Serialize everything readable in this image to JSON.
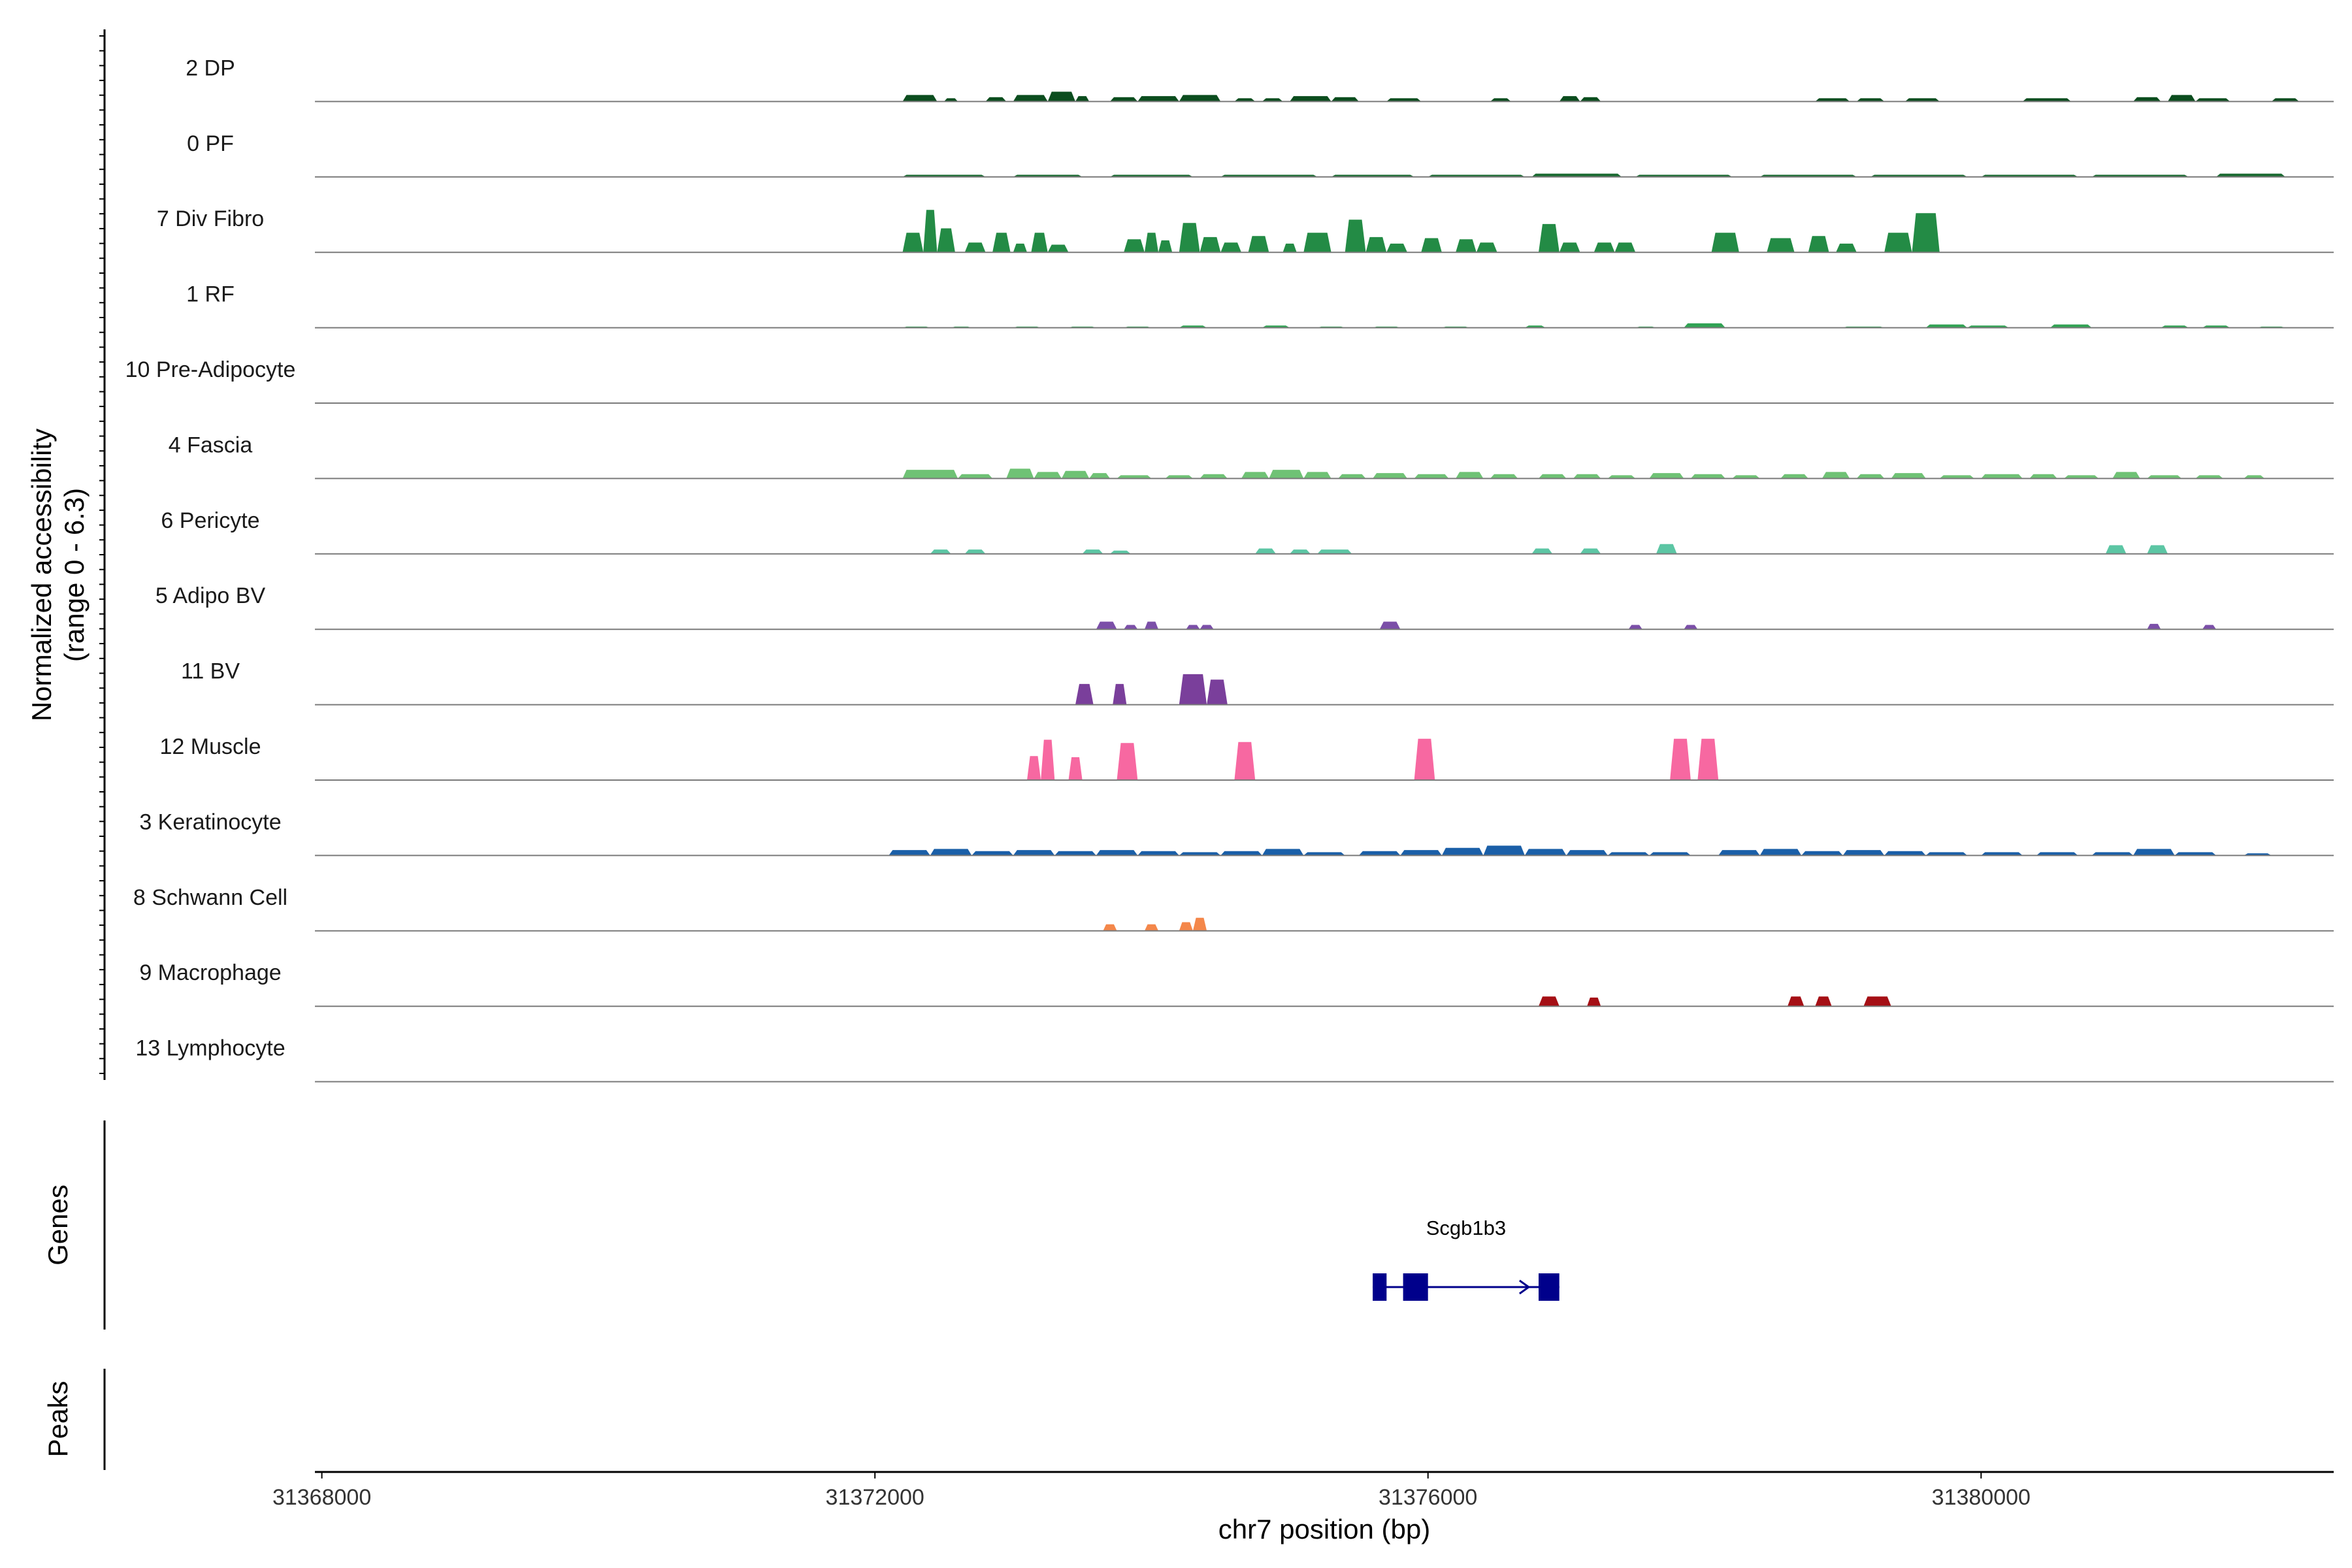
{
  "chart_data": {
    "type": "area",
    "title": "",
    "chromosome": "chr7",
    "xlabel": "chr7 position (bp)",
    "ylabel_line1": "Normalized accessibility",
    "ylabel_line2": "(range 0 - 6.3)",
    "xlim": [
      31367950,
      31382550
    ],
    "xticks": [
      31368000,
      31372000,
      31376000,
      31380000
    ],
    "xtick_labels": [
      "31368000",
      "31372000",
      "31376000",
      "31380000"
    ],
    "ylim": [
      0,
      6.3
    ],
    "genes_track_label": "Genes",
    "peaks_track_label": "Peaks",
    "tracks": [
      {
        "name": "2 DP",
        "color": "#0b4d1e",
        "peaks": [
          [
            31372200,
            31372450,
            0.6
          ],
          [
            31372500,
            31372600,
            0.3
          ],
          [
            31372800,
            31372950,
            0.4
          ],
          [
            31373000,
            31373250,
            0.6
          ],
          [
            31373250,
            31373450,
            0.9
          ],
          [
            31373450,
            31373550,
            0.5
          ],
          [
            31373700,
            31373900,
            0.4
          ],
          [
            31373900,
            31374200,
            0.5
          ],
          [
            31374200,
            31374500,
            0.6
          ],
          [
            31374600,
            31374750,
            0.3
          ],
          [
            31374800,
            31374950,
            0.3
          ],
          [
            31375000,
            31375300,
            0.5
          ],
          [
            31375300,
            31375500,
            0.4
          ],
          [
            31375700,
            31375950,
            0.3
          ],
          [
            31376450,
            31376600,
            0.3
          ],
          [
            31376950,
            31377100,
            0.5
          ],
          [
            31377100,
            31377250,
            0.4
          ],
          [
            31378800,
            31379050,
            0.3
          ],
          [
            31379100,
            31379300,
            0.3
          ],
          [
            31379450,
            31379700,
            0.3
          ],
          [
            31380300,
            31380650,
            0.3
          ],
          [
            31381100,
            31381300,
            0.4
          ],
          [
            31381350,
            31381550,
            0.6
          ],
          [
            31381550,
            31381800,
            0.3
          ],
          [
            31382100,
            31382300,
            0.3
          ]
        ]
      },
      {
        "name": "0 PF",
        "color": "#1b6b32",
        "peaks": [
          [
            31372200,
            31372800,
            0.2
          ],
          [
            31373000,
            31373500,
            0.2
          ],
          [
            31373700,
            31374300,
            0.2
          ],
          [
            31374500,
            31375200,
            0.2
          ],
          [
            31375300,
            31375900,
            0.2
          ],
          [
            31376000,
            31376700,
            0.2
          ],
          [
            31376750,
            31377400,
            0.3
          ],
          [
            31377500,
            31378200,
            0.2
          ],
          [
            31378400,
            31379100,
            0.2
          ],
          [
            31379200,
            31379900,
            0.2
          ],
          [
            31380000,
            31380700,
            0.2
          ],
          [
            31380800,
            31381500,
            0.2
          ],
          [
            31381700,
            31382200,
            0.3
          ]
        ]
      },
      {
        "name": "7 Div Fibro",
        "color": "#238b45",
        "peaks": [
          [
            31372200,
            31372350,
            1.8
          ],
          [
            31372350,
            31372450,
            3.9
          ],
          [
            31372450,
            31372580,
            2.2
          ],
          [
            31372650,
            31372800,
            0.9
          ],
          [
            31372850,
            31372980,
            1.8
          ],
          [
            31373000,
            31373100,
            0.8
          ],
          [
            31373130,
            31373250,
            1.8
          ],
          [
            31373250,
            31373400,
            0.7
          ],
          [
            31373800,
            31373950,
            1.2
          ],
          [
            31373950,
            31374050,
            1.8
          ],
          [
            31374050,
            31374150,
            1.1
          ],
          [
            31374200,
            31374350,
            2.7
          ],
          [
            31374350,
            31374500,
            1.4
          ],
          [
            31374500,
            31374650,
            0.9
          ],
          [
            31374700,
            31374850,
            1.5
          ],
          [
            31374950,
            31375050,
            0.8
          ],
          [
            31375100,
            31375300,
            1.8
          ],
          [
            31375400,
            31375550,
            3.0
          ],
          [
            31375550,
            31375700,
            1.4
          ],
          [
            31375700,
            31375850,
            0.8
          ],
          [
            31375950,
            31376100,
            1.3
          ],
          [
            31376200,
            31376350,
            1.2
          ],
          [
            31376350,
            31376500,
            0.9
          ],
          [
            31376800,
            31376950,
            2.6
          ],
          [
            31376950,
            31377100,
            0.9
          ],
          [
            31377200,
            31377350,
            0.9
          ],
          [
            31377350,
            31377500,
            0.9
          ],
          [
            31378050,
            31378250,
            1.8
          ],
          [
            31378450,
            31378650,
            1.3
          ],
          [
            31378750,
            31378900,
            1.5
          ],
          [
            31378950,
            31379100,
            0.8
          ],
          [
            31379300,
            31379500,
            1.8
          ],
          [
            31379500,
            31379700,
            3.6
          ]
        ]
      },
      {
        "name": "1 RF",
        "color": "#31a354",
        "peaks": [
          [
            31372200,
            31372400,
            0.1
          ],
          [
            31372550,
            31372700,
            0.1
          ],
          [
            31373000,
            31373200,
            0.1
          ],
          [
            31373400,
            31373600,
            0.1
          ],
          [
            31373800,
            31374000,
            0.1
          ],
          [
            31374200,
            31374400,
            0.2
          ],
          [
            31374800,
            31375000,
            0.2
          ],
          [
            31375200,
            31375400,
            0.1
          ],
          [
            31375600,
            31375800,
            0.1
          ],
          [
            31376100,
            31376300,
            0.1
          ],
          [
            31376700,
            31376850,
            0.2
          ],
          [
            31377500,
            31377650,
            0.1
          ],
          [
            31377850,
            31378150,
            0.4
          ],
          [
            31379000,
            31379300,
            0.1
          ],
          [
            31379600,
            31379900,
            0.3
          ],
          [
            31379900,
            31380200,
            0.2
          ],
          [
            31380500,
            31380800,
            0.3
          ],
          [
            31381300,
            31381500,
            0.2
          ],
          [
            31381600,
            31381800,
            0.2
          ],
          [
            31382000,
            31382200,
            0.1
          ]
        ]
      },
      {
        "name": "10 Pre-Adipocyte",
        "color": "#74c476",
        "peaks": []
      },
      {
        "name": "4 Fascia",
        "color": "#6fc275",
        "peaks": [
          [
            31372200,
            31372600,
            0.8
          ],
          [
            31372600,
            31372850,
            0.4
          ],
          [
            31372950,
            31373150,
            0.9
          ],
          [
            31373150,
            31373350,
            0.6
          ],
          [
            31373350,
            31373550,
            0.7
          ],
          [
            31373550,
            31373700,
            0.5
          ],
          [
            31373750,
            31374000,
            0.3
          ],
          [
            31374100,
            31374300,
            0.3
          ],
          [
            31374350,
            31374550,
            0.4
          ],
          [
            31374650,
            31374850,
            0.6
          ],
          [
            31374850,
            31375100,
            0.8
          ],
          [
            31375100,
            31375300,
            0.6
          ],
          [
            31375350,
            31375550,
            0.4
          ],
          [
            31375600,
            31375850,
            0.5
          ],
          [
            31375900,
            31376150,
            0.4
          ],
          [
            31376200,
            31376400,
            0.6
          ],
          [
            31376450,
            31376650,
            0.4
          ],
          [
            31376800,
            31377000,
            0.4
          ],
          [
            31377050,
            31377250,
            0.4
          ],
          [
            31377300,
            31377500,
            0.3
          ],
          [
            31377600,
            31377850,
            0.5
          ],
          [
            31377900,
            31378150,
            0.4
          ],
          [
            31378200,
            31378400,
            0.3
          ],
          [
            31378550,
            31378750,
            0.4
          ],
          [
            31378850,
            31379050,
            0.6
          ],
          [
            31379100,
            31379300,
            0.4
          ],
          [
            31379350,
            31379600,
            0.5
          ],
          [
            31379700,
            31379950,
            0.3
          ],
          [
            31380000,
            31380300,
            0.4
          ],
          [
            31380350,
            31380550,
            0.4
          ],
          [
            31380600,
            31380850,
            0.3
          ],
          [
            31380950,
            31381150,
            0.6
          ],
          [
            31381200,
            31381450,
            0.3
          ],
          [
            31381550,
            31381750,
            0.3
          ],
          [
            31381900,
            31382050,
            0.3
          ]
        ]
      },
      {
        "name": "6 Pericyte",
        "color": "#5cc6a4",
        "peaks": [
          [
            31372400,
            31372550,
            0.4
          ],
          [
            31372650,
            31372800,
            0.4
          ],
          [
            31373500,
            31373650,
            0.4
          ],
          [
            31373700,
            31373850,
            0.3
          ],
          [
            31374750,
            31374900,
            0.5
          ],
          [
            31375000,
            31375150,
            0.4
          ],
          [
            31375200,
            31375450,
            0.4
          ],
          [
            31376750,
            31376900,
            0.5
          ],
          [
            31377100,
            31377250,
            0.5
          ],
          [
            31377650,
            31377800,
            0.9
          ],
          [
            31380900,
            31381050,
            0.8
          ],
          [
            31381200,
            31381350,
            0.8
          ]
        ]
      },
      {
        "name": "5 Adipo BV",
        "color": "#7b4fa8",
        "peaks": [
          [
            31373600,
            31373750,
            0.7
          ],
          [
            31373800,
            31373900,
            0.4
          ],
          [
            31373950,
            31374050,
            0.7
          ],
          [
            31374250,
            31374350,
            0.4
          ],
          [
            31374350,
            31374450,
            0.4
          ],
          [
            31375650,
            31375800,
            0.7
          ],
          [
            31377450,
            31377550,
            0.4
          ],
          [
            31377850,
            31377950,
            0.4
          ],
          [
            31381200,
            31381300,
            0.5
          ],
          [
            31381600,
            31381700,
            0.4
          ]
        ]
      },
      {
        "name": "11 BV",
        "color": "#7a3f9b",
        "peaks": [
          [
            31373450,
            31373580,
            1.9
          ],
          [
            31373720,
            31373820,
            1.9
          ],
          [
            31374200,
            31374400,
            2.8
          ],
          [
            31374400,
            31374550,
            2.3
          ]
        ]
      },
      {
        "name": "12 Muscle",
        "color": "#f768a1",
        "peaks": [
          [
            31373100,
            31373200,
            2.2
          ],
          [
            31373200,
            31373300,
            3.7
          ],
          [
            31373400,
            31373500,
            2.1
          ],
          [
            31373750,
            31373900,
            3.4
          ],
          [
            31374600,
            31374750,
            3.5
          ],
          [
            31375900,
            31376050,
            3.8
          ],
          [
            31377750,
            31377900,
            3.8
          ],
          [
            31377950,
            31378100,
            3.8
          ]
        ]
      },
      {
        "name": "3 Keratinocyte",
        "color": "#1a5fa8",
        "peaks": [
          [
            31372100,
            31372400,
            0.5
          ],
          [
            31372400,
            31372700,
            0.6
          ],
          [
            31372700,
            31373000,
            0.4
          ],
          [
            31373000,
            31373300,
            0.5
          ],
          [
            31373300,
            31373600,
            0.4
          ],
          [
            31373600,
            31373900,
            0.5
          ],
          [
            31373900,
            31374200,
            0.4
          ],
          [
            31374200,
            31374500,
            0.3
          ],
          [
            31374500,
            31374800,
            0.4
          ],
          [
            31374800,
            31375100,
            0.6
          ],
          [
            31375100,
            31375400,
            0.3
          ],
          [
            31375500,
            31375800,
            0.4
          ],
          [
            31375800,
            31376100,
            0.5
          ],
          [
            31376100,
            31376400,
            0.7
          ],
          [
            31376400,
            31376700,
            0.9
          ],
          [
            31376700,
            31377000,
            0.6
          ],
          [
            31377000,
            31377300,
            0.5
          ],
          [
            31377300,
            31377600,
            0.3
          ],
          [
            31377600,
            31377900,
            0.3
          ],
          [
            31378100,
            31378400,
            0.5
          ],
          [
            31378400,
            31378700,
            0.6
          ],
          [
            31378700,
            31379000,
            0.4
          ],
          [
            31379000,
            31379300,
            0.5
          ],
          [
            31379300,
            31379600,
            0.4
          ],
          [
            31379600,
            31379900,
            0.3
          ],
          [
            31380000,
            31380300,
            0.3
          ],
          [
            31380400,
            31380700,
            0.3
          ],
          [
            31380800,
            31381100,
            0.3
          ],
          [
            31381100,
            31381400,
            0.6
          ],
          [
            31381400,
            31381700,
            0.3
          ],
          [
            31381900,
            31382100,
            0.2
          ]
        ]
      },
      {
        "name": "8 Schwann Cell",
        "color": "#f4874a",
        "peaks": [
          [
            31373650,
            31373750,
            0.6
          ],
          [
            31373950,
            31374050,
            0.6
          ],
          [
            31374200,
            31374300,
            0.8
          ],
          [
            31374300,
            31374400,
            1.2
          ]
        ]
      },
      {
        "name": "9 Macrophage",
        "color": "#a50f15",
        "peaks": [
          [
            31376800,
            31376950,
            0.9
          ],
          [
            31377150,
            31377250,
            0.8
          ],
          [
            31378600,
            31378720,
            0.9
          ],
          [
            31378800,
            31378920,
            0.9
          ],
          [
            31379150,
            31379350,
            0.9
          ]
        ]
      },
      {
        "name": "13 Lymphocyte",
        "color": "#c0392b",
        "peaks": []
      }
    ],
    "gene": {
      "name": "Scgb1b3",
      "color": "#00008b",
      "strand": "+",
      "start": 31375600,
      "end": 31376950,
      "exons": [
        [
          31375600,
          31375700
        ],
        [
          31375820,
          31376000
        ],
        [
          31376800,
          31376950
        ]
      ]
    }
  }
}
